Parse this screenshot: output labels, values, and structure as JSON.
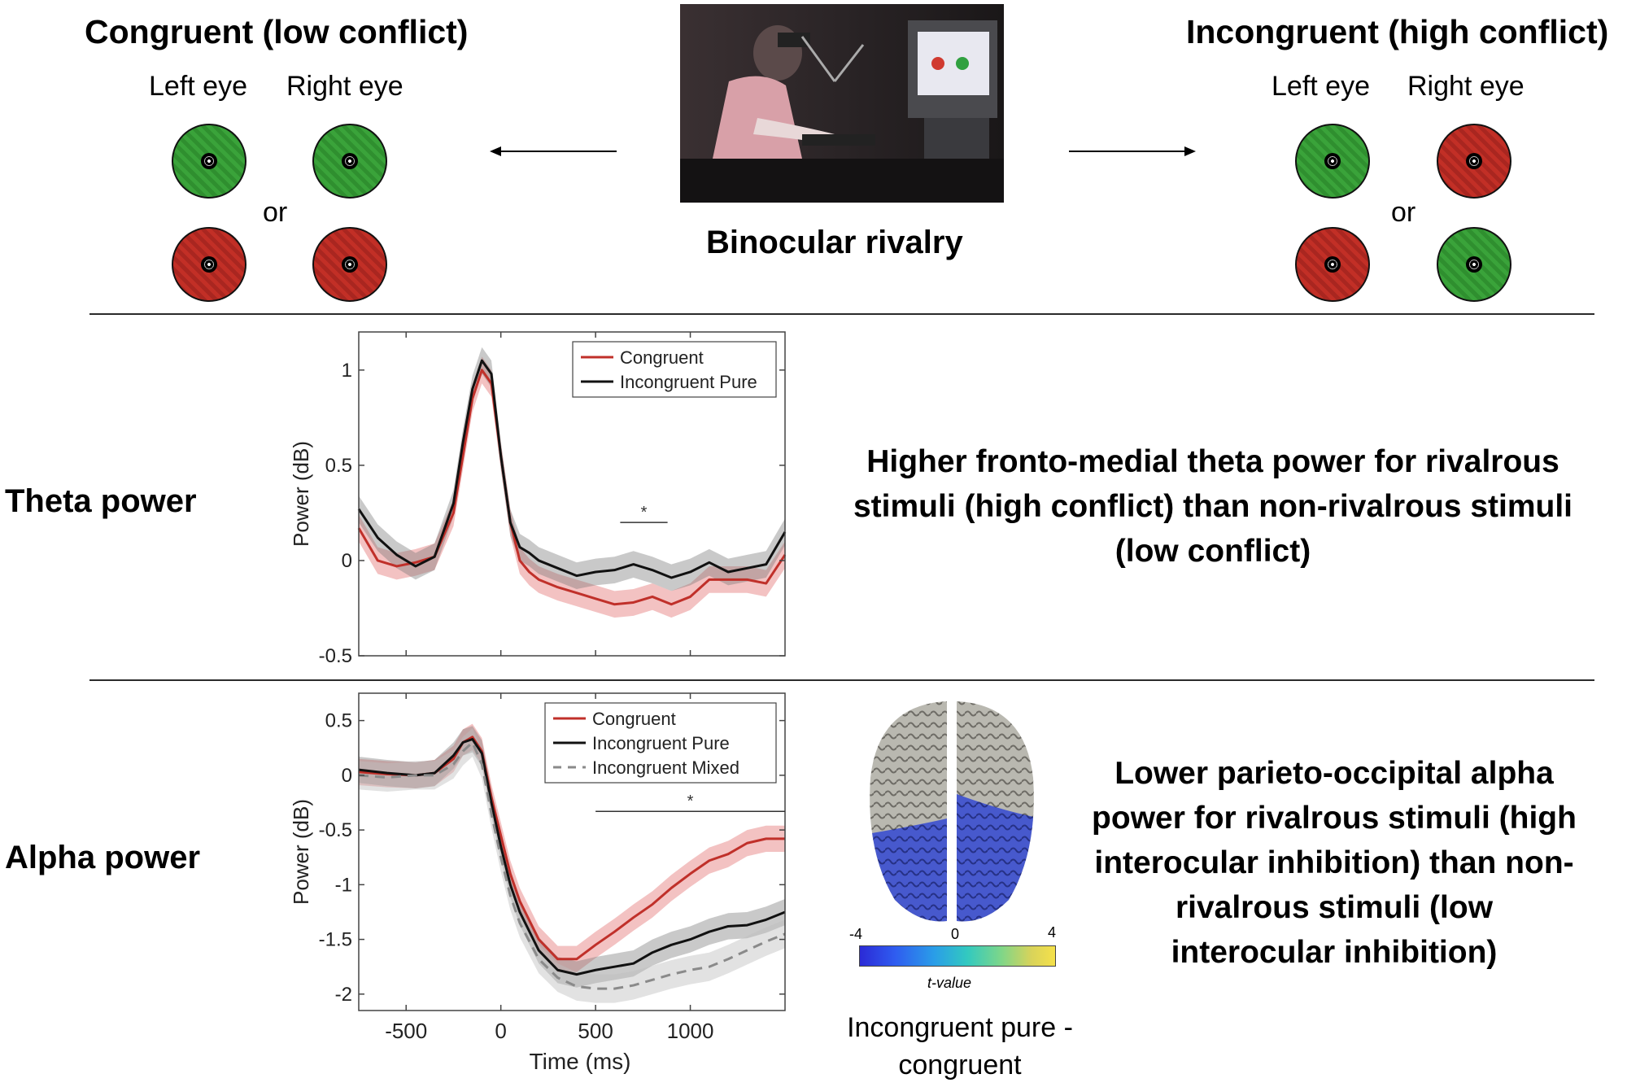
{
  "top": {
    "congruent_title": "Congruent (low conflict)",
    "incongruent_title": "Incongruent (high conflict)",
    "left_eye": "Left eye",
    "right_eye": "Right eye",
    "or": "or",
    "center_label": "Binocular rivalry",
    "congruent_stimuli": [
      [
        "green",
        "green"
      ],
      [
        "red",
        "red"
      ]
    ],
    "incongruent_stimuli": [
      [
        "green",
        "red"
      ],
      [
        "red",
        "green"
      ]
    ],
    "colors": {
      "green": "#3aa33a",
      "red": "#c22f26"
    }
  },
  "theta": {
    "row_label": "Theta power",
    "description": "Higher fronto-medial theta power for rivalrous stimuli (high conflict) than non-rivalrous stimuli (low conflict)"
  },
  "alpha": {
    "row_label": "Alpha power",
    "description": "Lower parieto-occipital alpha power for rivalrous stimuli (high interocular inhibition) than non-rivalrous stimuli (low interocular inhibition)",
    "topo_caption": "Incongruent pure - congruent",
    "colorbar": {
      "min": "-4",
      "mid": "0",
      "max": "4",
      "label": "t-value"
    }
  },
  "chart_data": [
    {
      "type": "line",
      "ylabel": "Power (dB)",
      "xlabel": "",
      "xlim": [
        -750,
        1500
      ],
      "ylim": [
        -0.5,
        1.2
      ],
      "yticks": [
        -0.5,
        0,
        0.5,
        1
      ],
      "yticklabels": [
        "-0.5",
        "0",
        "0.5",
        "1"
      ],
      "xticks": [
        -500,
        0,
        500,
        1000
      ],
      "legend": "top-right",
      "significance": {
        "x": [
          630,
          880
        ],
        "y": 0.2,
        "label": "*"
      },
      "series": [
        {
          "name": "Congruent",
          "color": "#c0302a",
          "style": "solid",
          "band": 0.07,
          "x": [
            -750,
            -650,
            -550,
            -450,
            -350,
            -250,
            -200,
            -150,
            -100,
            -50,
            0,
            50,
            100,
            150,
            200,
            300,
            400,
            500,
            600,
            700,
            800,
            900,
            1000,
            1100,
            1200,
            1300,
            1400,
            1500
          ],
          "y": [
            0.17,
            0.0,
            -0.03,
            -0.01,
            0.02,
            0.25,
            0.55,
            0.85,
            1.0,
            0.93,
            0.55,
            0.2,
            0.0,
            -0.06,
            -0.1,
            -0.14,
            -0.17,
            -0.2,
            -0.23,
            -0.22,
            -0.19,
            -0.23,
            -0.19,
            -0.1,
            -0.1,
            -0.1,
            -0.12,
            0.03
          ]
        },
        {
          "name": "Incongruent Pure",
          "color": "#111111",
          "style": "solid",
          "band": 0.07,
          "x": [
            -750,
            -650,
            -550,
            -450,
            -350,
            -250,
            -200,
            -150,
            -100,
            -50,
            0,
            50,
            100,
            150,
            200,
            300,
            400,
            500,
            600,
            700,
            800,
            900,
            1000,
            1100,
            1200,
            1300,
            1400,
            1500
          ],
          "y": [
            0.27,
            0.12,
            0.03,
            -0.03,
            0.02,
            0.3,
            0.62,
            0.9,
            1.05,
            0.98,
            0.55,
            0.2,
            0.07,
            0.04,
            0.0,
            -0.04,
            -0.08,
            -0.06,
            -0.05,
            -0.02,
            -0.05,
            -0.09,
            -0.06,
            -0.01,
            -0.06,
            -0.04,
            -0.02,
            0.15
          ]
        }
      ]
    },
    {
      "type": "line",
      "ylabel": "Power (dB)",
      "xlabel": "Time (ms)",
      "xlim": [
        -750,
        1500
      ],
      "ylim": [
        -2.15,
        0.75
      ],
      "yticks": [
        0.5,
        0,
        -0.5,
        -1,
        -1.5,
        -2
      ],
      "yticklabels": [
        "0.5",
        "0",
        "-0.5",
        "-1",
        "-1.5",
        "-2"
      ],
      "xticks": [
        -500,
        0,
        500,
        1000
      ],
      "xticklabels": [
        "-500",
        "0",
        "500",
        "1000"
      ],
      "legend": "top-right",
      "significance": {
        "x": [
          500,
          1500
        ],
        "y": -0.33,
        "label": "*"
      },
      "series": [
        {
          "name": "Congruent",
          "color": "#c0302a",
          "style": "solid",
          "band": 0.12,
          "x": [
            -750,
            -600,
            -450,
            -350,
            -250,
            -200,
            -150,
            -100,
            -50,
            0,
            50,
            100,
            200,
            300,
            400,
            500,
            600,
            700,
            800,
            900,
            1000,
            1100,
            1200,
            1300,
            1400,
            1500
          ],
          "y": [
            0.03,
            0.01,
            0.0,
            0.02,
            0.15,
            0.3,
            0.35,
            0.22,
            -0.2,
            -0.55,
            -0.9,
            -1.15,
            -1.5,
            -1.68,
            -1.68,
            -1.55,
            -1.43,
            -1.3,
            -1.18,
            -1.03,
            -0.9,
            -0.78,
            -0.72,
            -0.62,
            -0.58,
            -0.58
          ]
        },
        {
          "name": "Incongruent Pure",
          "color": "#111111",
          "style": "solid",
          "band": 0.12,
          "x": [
            -750,
            -600,
            -450,
            -350,
            -250,
            -200,
            -150,
            -100,
            -50,
            0,
            50,
            100,
            200,
            300,
            400,
            500,
            600,
            700,
            800,
            900,
            1000,
            1100,
            1200,
            1300,
            1400,
            1500
          ],
          "y": [
            0.05,
            0.02,
            0.0,
            0.02,
            0.18,
            0.3,
            0.33,
            0.2,
            -0.25,
            -0.65,
            -1.0,
            -1.25,
            -1.6,
            -1.78,
            -1.82,
            -1.78,
            -1.75,
            -1.72,
            -1.62,
            -1.55,
            -1.5,
            -1.43,
            -1.38,
            -1.37,
            -1.32,
            -1.25
          ]
        },
        {
          "name": "Incongruent Mixed",
          "color": "#8a8a8a",
          "style": "dashed",
          "band": 0.13,
          "x": [
            -750,
            -600,
            -450,
            -350,
            -250,
            -200,
            -150,
            -100,
            -50,
            0,
            50,
            100,
            200,
            300,
            400,
            500,
            600,
            700,
            800,
            900,
            1000,
            1100,
            1200,
            1300,
            1400,
            1500
          ],
          "y": [
            0.0,
            -0.02,
            0.0,
            0.0,
            0.1,
            0.22,
            0.3,
            0.1,
            -0.35,
            -0.75,
            -1.1,
            -1.35,
            -1.68,
            -1.85,
            -1.93,
            -1.95,
            -1.95,
            -1.92,
            -1.87,
            -1.82,
            -1.78,
            -1.75,
            -1.68,
            -1.6,
            -1.52,
            -1.45
          ]
        }
      ]
    }
  ]
}
